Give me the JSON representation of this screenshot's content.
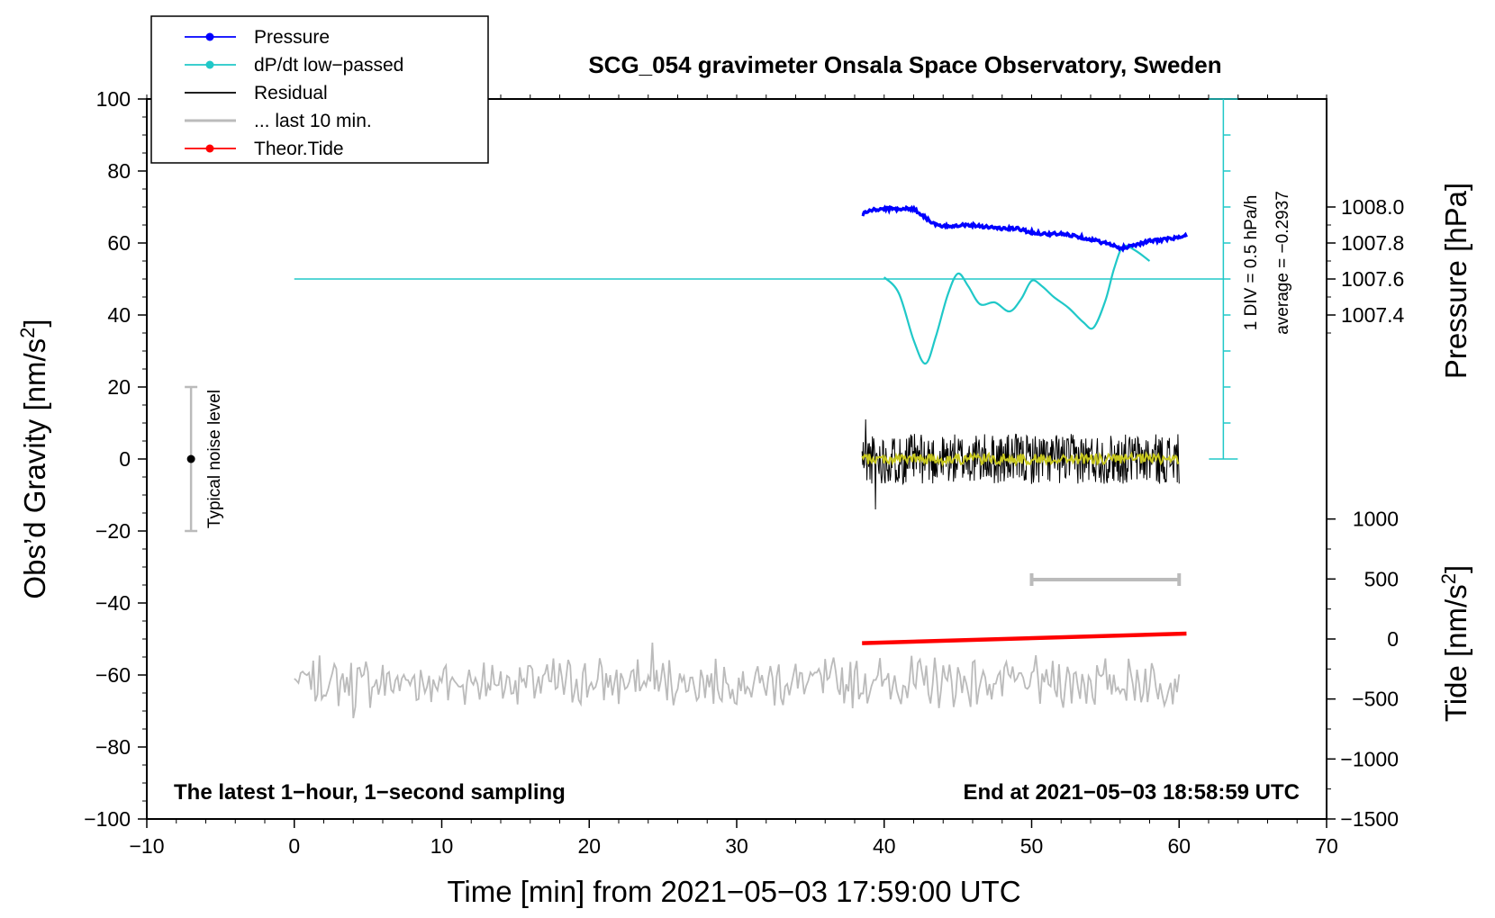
{
  "chart_data": {
    "type": "line",
    "title": "SCG_054 gravimeter Onsala Space Observatory, Sweden",
    "xlabel": "Time [min] from 2021−05−03 17:59:00 UTC",
    "ylabel_left_main": "Obs’d Gravity [nm/s",
    "ylabel_left_sup": "2",
    "ylabel_left_end": "]",
    "ylabel_right_pressure": "Pressure [hPa]",
    "ylabel_right_tide_main": "Tide [nm/s",
    "ylabel_right_tide_sup": "2",
    "ylabel_right_tide_end": "]",
    "xlim": [
      -10,
      70
    ],
    "ylim": [
      -100,
      100
    ],
    "x_ticks": [
      -10,
      0,
      10,
      20,
      30,
      40,
      50,
      60,
      70
    ],
    "x_tick_labels": [
      "−10",
      "0",
      "10",
      "20",
      "30",
      "40",
      "50",
      "60",
      "70"
    ],
    "y_ticks": [
      -100,
      -80,
      -60,
      -40,
      -20,
      0,
      20,
      40,
      60,
      80,
      100
    ],
    "y_tick_labels": [
      "−100",
      "−80",
      "−60",
      "−40",
      "−20",
      "0",
      "20",
      "40",
      "60",
      "80",
      "100"
    ],
    "pressure_axis": {
      "ticks": [
        1007.4,
        1007.6,
        1007.8,
        1008.0
      ],
      "tick_labels": [
        "1007.4",
        "1007.6",
        "1007.8",
        "1008.0"
      ],
      "offset": 1007.8,
      "scale_nm_per_hpa": 50
    },
    "tide_axis": {
      "ticks": [
        -1500,
        -1000,
        -500,
        0,
        500,
        1000
      ],
      "tick_labels": [
        "−1500",
        "−1000",
        "−500",
        "0",
        "500",
        "1000"
      ],
      "scale_nm_per_tide": 0.03333,
      "offset_nm": -50
    },
    "legend": {
      "position": "top-left",
      "entries": [
        {
          "label": "Pressure",
          "color": "#0000ff",
          "marker": true
        },
        {
          "label": "dP/dt low−passed",
          "color": "#20c8c8",
          "marker": true
        },
        {
          "label": "Residual",
          "color": "#000000",
          "marker": false
        },
        {
          "label": "... last 10 min.",
          "color": "#bbbbbb",
          "marker": false
        },
        {
          "label": "Theor.Tide",
          "color": "#ff0000",
          "marker": true
        }
      ]
    },
    "series": [
      {
        "name": "Pressure",
        "color": "#0000ff",
        "x": [
          38.5,
          39,
          40,
          41,
          42,
          42.5,
          43,
          43.5,
          44,
          45,
          46,
          47,
          48,
          49,
          50,
          51,
          52,
          53,
          54,
          55,
          56,
          57,
          58,
          59,
          60,
          60.5
        ],
        "y": [
          68,
          69,
          69.5,
          69.5,
          69.5,
          68,
          66.5,
          65,
          64.5,
          65,
          65,
          64.5,
          64,
          64,
          63,
          62.5,
          62.5,
          62,
          61,
          60,
          58.5,
          59.5,
          60.5,
          61,
          61.5,
          62
        ]
      },
      {
        "name": "dP/dt low−passed",
        "color": "#20c8c8",
        "x": [
          40,
          41,
          42,
          42.8,
          43.5,
          44.3,
          45,
          45.7,
          46.5,
          47.5,
          48.5,
          49.3,
          50,
          50.7,
          51.5,
          52.5,
          53.5,
          54.2,
          55,
          55.6,
          56.2,
          57,
          58
        ],
        "y": [
          50.5,
          46,
          33,
          26.5,
          34,
          45.5,
          51.5,
          48,
          43,
          43.5,
          41,
          44.5,
          49.5,
          48,
          45,
          42,
          38,
          36.5,
          44,
          53,
          59,
          58,
          55
        ]
      },
      {
        "name": "dP/dt average line",
        "color": "#20c8c8",
        "x": [
          0,
          63
        ],
        "y": [
          50,
          50
        ]
      },
      {
        "name": "Residual",
        "color": "#000000",
        "x_range": [
          38.5,
          60
        ],
        "y_center": 0,
        "y_amplitude": 7,
        "y_extremes": [
          -14,
          11
        ]
      },
      {
        "name": "Residual smoothed",
        "color": "#c8c81e",
        "x_range": [
          38.5,
          60
        ],
        "y_center": 0,
        "y_amplitude": 1.5
      },
      {
        "name": "... last 10 min.",
        "color": "#bbbbbb",
        "x_range": [
          0,
          60
        ],
        "y_center": -62,
        "y_amplitude": 5,
        "y_extremes": [
          -72,
          -51
        ]
      },
      {
        "name": "Theor.Tide",
        "color": "#ff0000",
        "x": [
          38.5,
          60.5
        ],
        "y_tide": [
          -35,
          45
        ]
      }
    ],
    "pressure_scale_bar": {
      "label_line1": "1 DIV = 0.5 hPa/h",
      "label_line2": "average = −0.2937",
      "x": 63,
      "y_range": [
        0,
        100
      ],
      "divisions": 10
    },
    "last10_bar": {
      "x_range": [
        50,
        60
      ],
      "y": -33.5
    },
    "noise_bar": {
      "label": "Typical noise level",
      "x": -7,
      "y_range": [
        -20,
        20
      ]
    },
    "footer_left": "The latest 1−hour, 1−second sampling",
    "footer_right": "End at 2021−05−03 18:58:59 UTC"
  }
}
